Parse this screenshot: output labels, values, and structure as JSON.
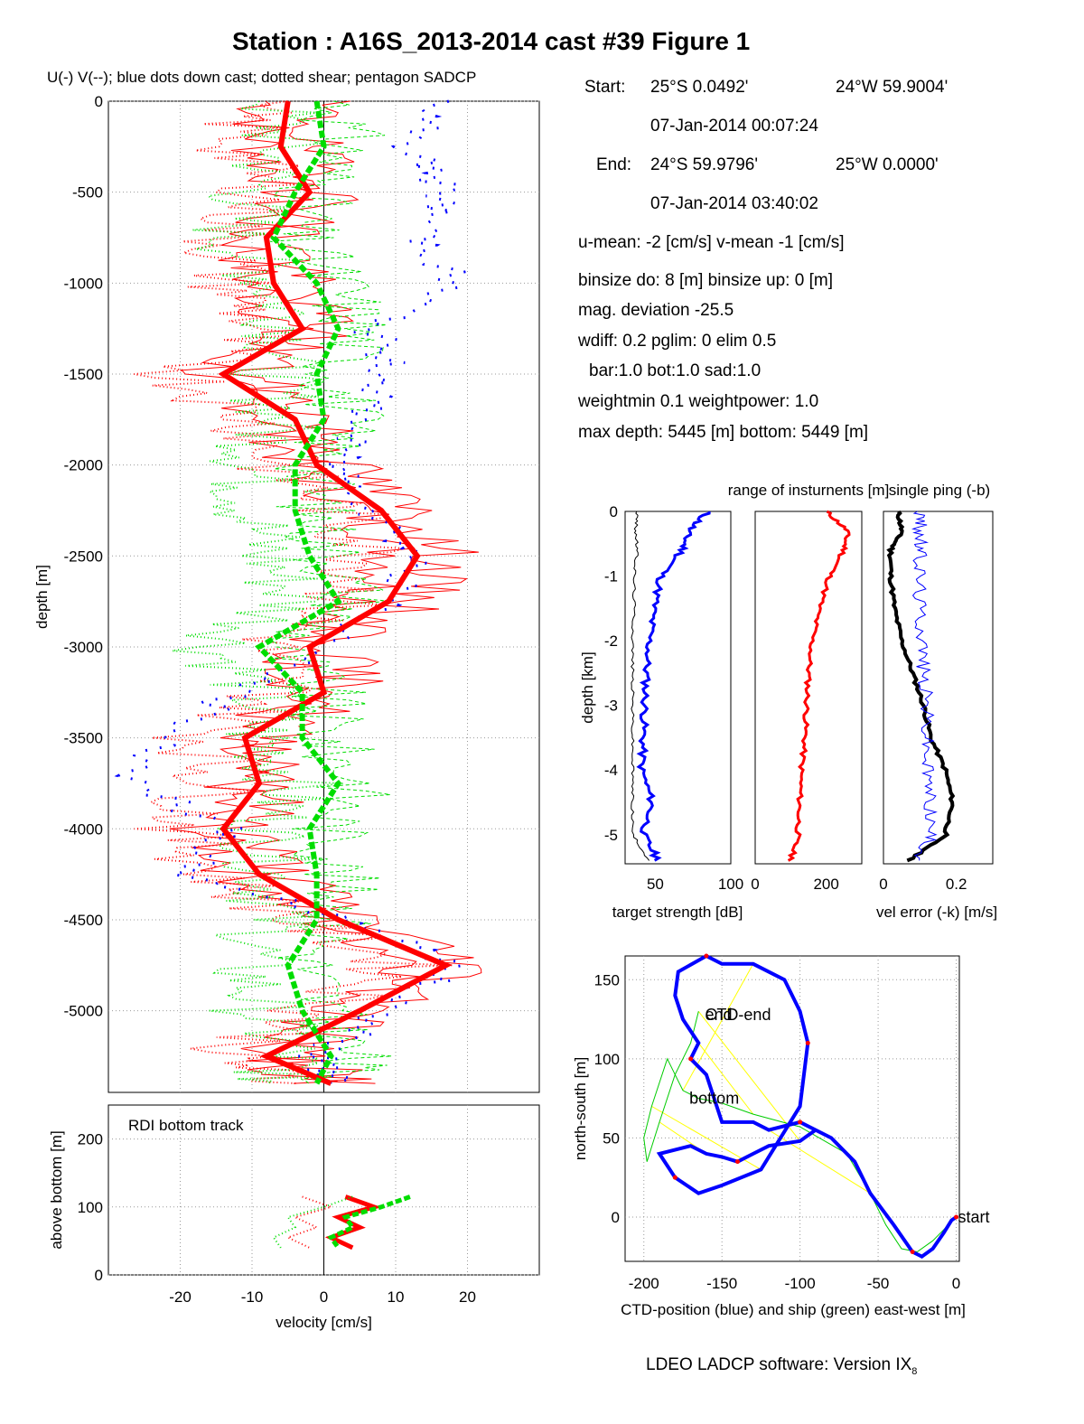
{
  "title": "Station : A16S_2013-2014 cast #39  Figure 1",
  "subtitle": "U(-) V(--); blue dots down cast; dotted shear; pentagon SADCP",
  "info": {
    "start_label": "Start:",
    "start_lat": "25°S  0.0492'",
    "start_lon": "24°W 59.9004'",
    "start_time": "07-Jan-2014 00:07:24",
    "end_label": "End:",
    "end_lat": "24°S 59.9796'",
    "end_lon": "25°W  0.0000'",
    "end_time": "07-Jan-2014 03:40:02",
    "means": "u-mean:  -2 [cm/s]    v-mean  -1 [cm/s]",
    "binsize": "binsize do: 8 [m]  binsize up:  0 [m]",
    "magdev": "mag. deviation -25.5",
    "wdiff": "wdiff: 0.2  pglim: 0  elim 0.5",
    "bar": "bar:1.0 bot:1.0 sad:1.0",
    "weight": "weightmin 0.1  weightpower: 1.0",
    "maxdepth": "max depth: 5445 [m]   bottom: 5449 [m]"
  },
  "footer": "LDEO LADCP software: Version IX",
  "footer_sub": "8",
  "colors": {
    "u": "#ff0000",
    "v": "#00dd00",
    "downcast": "#0000ff",
    "ship": "#00cc00",
    "ctd": "#0000ff",
    "link": "#ffff00"
  },
  "chart_data": [
    {
      "type": "line",
      "name": "velocity profile",
      "xlabel": "",
      "ylabel": "depth [m]",
      "xlim": [
        -30,
        30
      ],
      "ylim": [
        -5449,
        0
      ],
      "xticks": [
        "-20",
        "-10",
        "0",
        "10",
        "20"
      ],
      "xtick_values": [
        -20,
        -10,
        0,
        10,
        20
      ],
      "yticks": [
        "0",
        "-500",
        "-1000",
        "-1500",
        "-2000",
        "-2500",
        "-3000",
        "-3500",
        "-4000",
        "-4500",
        "-5000"
      ],
      "ytick_values": [
        0,
        -500,
        -1000,
        -1500,
        -2000,
        -2500,
        -3000,
        -3500,
        -4000,
        -4500,
        -5000
      ],
      "grid": true,
      "depth": [
        0,
        -250,
        -500,
        -750,
        -1000,
        -1250,
        -1500,
        -1750,
        -2000,
        -2250,
        -2500,
        -2750,
        -3000,
        -3250,
        -3500,
        -3750,
        -4000,
        -4250,
        -4500,
        -4750,
        -5000,
        -5250,
        -5400
      ],
      "series": [
        {
          "values": [
            -5,
            -6,
            -2,
            -8,
            -7,
            -3,
            -14,
            -4,
            -1,
            8,
            13,
            9,
            -2,
            0,
            -11,
            -9,
            -14,
            -9,
            2,
            17,
            5,
            -8,
            1
          ]
        },
        {
          "values": [
            -1,
            0,
            -4,
            -7,
            -1,
            2,
            -1,
            0,
            -4,
            -4,
            -2,
            2,
            -9,
            -3,
            -3,
            2,
            -2,
            -1,
            -1,
            -5,
            -3,
            1,
            -1
          ]
        },
        {
          "values": [
            15,
            12,
            17,
            14,
            18,
            7,
            9,
            5,
            2,
            7,
            13,
            9,
            0,
            -12,
            -22,
            -27,
            -14,
            -19,
            4,
            18,
            9,
            -1,
            2
          ]
        }
      ]
    },
    {
      "type": "line",
      "name": "bottom track",
      "title": "RDI bottom track",
      "xlabel": "velocity [cm/s]",
      "ylabel": "above bottom [m]",
      "xlim": [
        -30,
        30
      ],
      "ylim": [
        0,
        250
      ],
      "xticks": [
        "-20",
        "-10",
        "0",
        "10",
        "20"
      ],
      "xtick_values": [
        -20,
        -10,
        0,
        10,
        20
      ],
      "yticks": [
        "0",
        "100",
        "200"
      ],
      "ytick_values": [
        0,
        100,
        200
      ],
      "grid": true,
      "height": [
        115,
        100,
        85,
        70,
        55,
        40
      ],
      "series": [
        {
          "values": [
            3,
            7,
            2,
            5,
            1,
            4
          ]
        },
        {
          "values": [
            12,
            8,
            3,
            4,
            1,
            2
          ]
        }
      ]
    },
    {
      "type": "line",
      "name": "target strength",
      "xlabel": "target strength [dB]",
      "ylabel": "depth [km]",
      "xlim": [
        30,
        100
      ],
      "ylim": [
        -5.45,
        0
      ],
      "xticks": [
        "50",
        "100"
      ],
      "xtick_values": [
        50,
        100
      ],
      "yticks": [
        "0",
        "-1",
        "-2",
        "-3",
        "-4",
        "-5"
      ],
      "ytick_values": [
        0,
        -1,
        -2,
        -3,
        -4,
        -5
      ],
      "depth": [
        0,
        -0.3,
        -0.6,
        -1,
        -1.5,
        -2,
        -2.5,
        -3,
        -3.5,
        -4,
        -4.5,
        -5,
        -5.4
      ],
      "series": [
        {
          "values": [
            85,
            72,
            68,
            54,
            49,
            46,
            44,
            43,
            42,
            41,
            48,
            42,
            52
          ]
        },
        {
          "values": [
            38,
            37,
            38,
            36,
            36,
            35,
            35,
            35,
            35,
            35,
            35,
            35,
            46
          ]
        }
      ]
    },
    {
      "type": "line",
      "name": "range of instruments",
      "title": "range of insturnents [m]",
      "xlabel": "",
      "xlim": [
        0,
        300
      ],
      "ylim": [
        -5.45,
        0
      ],
      "xticks": [
        "0",
        "200"
      ],
      "xtick_values": [
        0,
        200
      ],
      "depth": [
        0,
        -0.3,
        -0.6,
        -1,
        -1.5,
        -2,
        -2.5,
        -3,
        -3.5,
        -4,
        -4.5,
        -5,
        -5.4
      ],
      "series": [
        {
          "values": [
            200,
            260,
            250,
            210,
            180,
            160,
            150,
            145,
            140,
            130,
            125,
            120,
            100
          ]
        }
      ]
    },
    {
      "type": "line",
      "name": "velocity error",
      "title": "single ping (-b)",
      "xlabel": "vel error (-k) [m/s]",
      "xlim": [
        0,
        0.3
      ],
      "ylim": [
        -5.45,
        0
      ],
      "xticks": [
        "0",
        "0.2"
      ],
      "xtick_values": [
        0,
        0.2
      ],
      "depth": [
        0,
        -0.3,
        -0.6,
        -1,
        -1.5,
        -2,
        -2.5,
        -3,
        -3.5,
        -4,
        -4.5,
        -5,
        -5.4
      ],
      "series": [
        {
          "values": [
            0.04,
            0.05,
            0.02,
            0.02,
            0.03,
            0.05,
            0.08,
            0.11,
            0.13,
            0.17,
            0.19,
            0.17,
            0.07
          ]
        },
        {
          "values": [
            0.1,
            0.1,
            0.1,
            0.1,
            0.1,
            0.11,
            0.11,
            0.12,
            0.12,
            0.12,
            0.13,
            0.13,
            0.1
          ]
        }
      ]
    },
    {
      "type": "line",
      "name": "position",
      "xlabel": "CTD-position (blue) and ship (green) east-west [m]",
      "ylabel": "north-south [m]",
      "xlim": [
        -212,
        2
      ],
      "ylim": [
        -28,
        165
      ],
      "xticks": [
        "-200",
        "-150",
        "-100",
        "-50",
        "0"
      ],
      "xtick_values": [
        -200,
        -150,
        -100,
        -50,
        0
      ],
      "yticks": [
        "0",
        "50",
        "100",
        "150"
      ],
      "ytick_values": [
        0,
        50,
        100,
        150
      ],
      "grid": true,
      "annotations": [
        {
          "text": "start",
          "x": 0,
          "y": 0
        },
        {
          "text": "bottom",
          "x": -172,
          "y": 75
        },
        {
          "text": "end",
          "x": -162,
          "y": 128
        },
        {
          "text": "CTD-end",
          "x": -162,
          "y": 128
        }
      ],
      "series": [
        {
          "x": [
            0,
            -3,
            -8,
            -15,
            -22,
            -28,
            -40,
            -55,
            -65,
            -80,
            -100,
            -120,
            -130,
            -150,
            -160,
            -170,
            -165,
            -175,
            -180,
            -178,
            -160,
            -150,
            -130,
            -110,
            -100,
            -95,
            -100,
            -125,
            -150,
            -165,
            -180,
            -190,
            -170,
            -160,
            -150,
            -140,
            -130,
            -120,
            -100,
            -90
          ],
          "y": [
            0,
            -2,
            -10,
            -20,
            -25,
            -22,
            -5,
            15,
            35,
            50,
            60,
            55,
            60,
            60,
            90,
            100,
            110,
            125,
            140,
            155,
            165,
            160,
            160,
            150,
            130,
            110,
            70,
            30,
            20,
            15,
            25,
            40,
            45,
            40,
            38,
            35,
            40,
            45,
            48,
            55
          ]
        },
        {
          "x": [
            0,
            -5,
            -15,
            -25,
            -35,
            -45,
            -55,
            -70,
            -100,
            -130,
            -150,
            -165,
            -175,
            -180,
            -185,
            -195,
            -200,
            -198,
            -190,
            -180,
            -170,
            -165
          ],
          "y": [
            0,
            -5,
            -15,
            -22,
            -20,
            -5,
            15,
            40,
            57,
            65,
            72,
            75,
            80,
            90,
            100,
            70,
            50,
            35,
            60,
            90,
            110,
            130
          ]
        }
      ]
    }
  ]
}
